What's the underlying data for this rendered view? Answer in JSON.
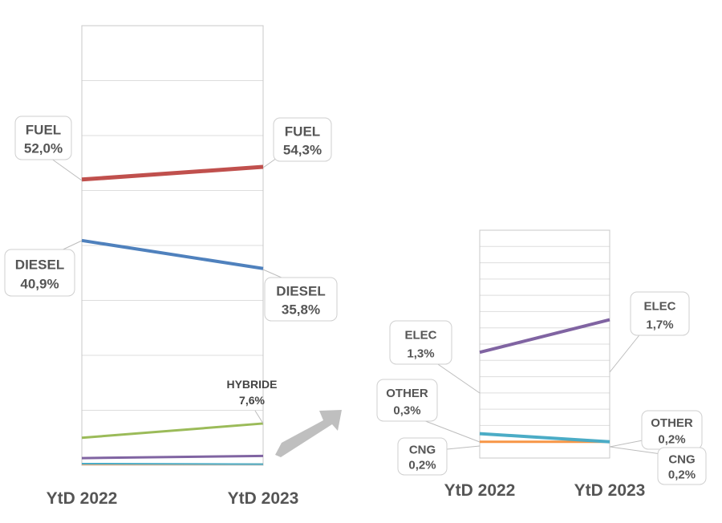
{
  "chart_data": [
    {
      "type": "line",
      "x": [
        "YtD 2022",
        "YtD 2023"
      ],
      "series": [
        {
          "name": "FUEL",
          "values": [
            52.0,
            54.3
          ],
          "labels": [
            "52,0%",
            "54,3%"
          ],
          "color": "#c0504d",
          "line_width": 5
        },
        {
          "name": "DIESEL",
          "values": [
            40.9,
            35.8
          ],
          "labels": [
            "40,9%",
            "35,8%"
          ],
          "color": "#4f81bd",
          "line_width": 4
        },
        {
          "name": "HYBRIDE",
          "values": [
            5.0,
            7.6
          ],
          "labels": [
            "",
            "7,6%"
          ],
          "color": "#9bbb59",
          "line_width": 3
        },
        {
          "name": "ELEC",
          "values": [
            1.3,
            1.7
          ],
          "labels": [
            "",
            ""
          ],
          "color": "#8064a2",
          "line_width": 3
        },
        {
          "name": "OTHER",
          "values": [
            0.3,
            0.2
          ],
          "labels": [
            "",
            ""
          ],
          "color": "#4bacc6",
          "line_width": 2
        },
        {
          "name": "CNG",
          "values": [
            0.2,
            0.2
          ],
          "labels": [
            "",
            ""
          ],
          "color": "#f79646",
          "line_width": 2
        }
      ],
      "ylim": [
        0,
        80
      ],
      "grid": true
    },
    {
      "type": "line",
      "x": [
        "YtD 2022",
        "YtD 2023"
      ],
      "series": [
        {
          "name": "ELEC",
          "values": [
            1.3,
            1.7
          ],
          "labels": [
            "1,3%",
            "1,7%"
          ],
          "color": "#8064a2",
          "line_width": 4
        },
        {
          "name": "OTHER",
          "values": [
            0.3,
            0.2
          ],
          "labels": [
            "0,3%",
            "0,2%"
          ],
          "color": "#4bacc6",
          "line_width": 4
        },
        {
          "name": "CNG",
          "values": [
            0.2,
            0.2
          ],
          "labels": [
            "0,2%",
            "0,2%"
          ],
          "color": "#f79646",
          "line_width": 3
        }
      ],
      "ylim": [
        0,
        2.8
      ],
      "grid": true
    }
  ],
  "arrow_color": "#bfbfbf"
}
